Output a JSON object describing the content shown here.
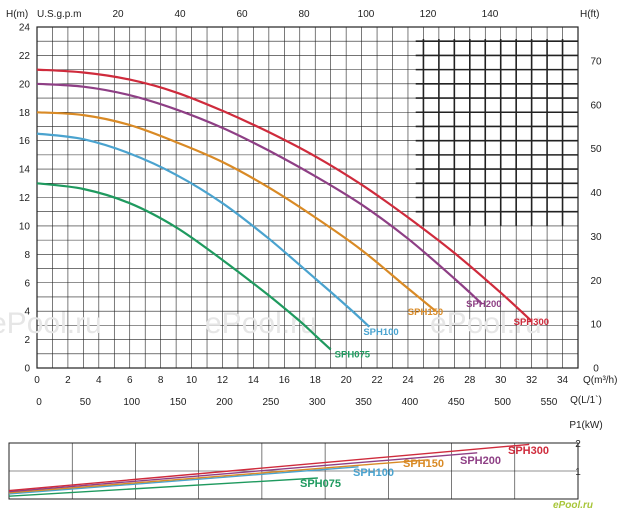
{
  "watermark": "ePool.ru",
  "brand_mark": "ePool.ru",
  "colors": {
    "SPH075": "#1f9a5f",
    "SPH100": "#4aa3cf",
    "SPH150": "#d98a25",
    "SPH200": "#8e3f85",
    "SPH300": "#cf2b3c",
    "grid": "#222222"
  },
  "chart_data": [
    {
      "type": "line",
      "title": "",
      "ylabel": "H(m)",
      "ylabel_right": "H(ft)",
      "xlabel_top": "U.S.g.p.m",
      "xlabel": "Q(m³/h)",
      "xlabel2": "Q(L/1`)",
      "xlim": [
        0,
        35
      ],
      "ylim": [
        0,
        24
      ],
      "grid": true,
      "x_ticks": [
        0,
        2,
        4,
        6,
        8,
        10,
        12,
        14,
        16,
        18,
        20,
        22,
        24,
        26,
        28,
        30,
        32,
        34
      ],
      "y_ticks": [
        0,
        2,
        4,
        6,
        8,
        10,
        12,
        14,
        16,
        18,
        20,
        22,
        24
      ],
      "top_ticks": [
        20,
        40,
        60,
        80,
        100,
        120,
        140
      ],
      "right_ticks": [
        0,
        10,
        20,
        30,
        40,
        50,
        60,
        70
      ],
      "lpm_ticks": [
        0,
        50,
        100,
        150,
        200,
        250,
        300,
        350,
        400,
        450,
        500,
        550
      ],
      "series": [
        {
          "name": "SPH075",
          "x": [
            0,
            3,
            6,
            9,
            12,
            15,
            17,
            18,
            19
          ],
          "y": [
            13,
            12.6,
            11.6,
            9.9,
            7.6,
            5.1,
            3.3,
            2.3,
            1.3
          ]
        },
        {
          "name": "SPH100",
          "x": [
            0,
            3,
            6,
            9,
            12,
            15,
            18,
            20,
            21.5
          ],
          "y": [
            16.5,
            16.1,
            15.1,
            13.6,
            11.6,
            9.1,
            6.3,
            4.4,
            2.9
          ]
        },
        {
          "name": "SPH150",
          "x": [
            0,
            3,
            6,
            9,
            12,
            15,
            18,
            21,
            24,
            25.8
          ],
          "y": [
            18,
            17.8,
            17.1,
            15.9,
            14.5,
            12.7,
            10.6,
            8.3,
            5.6,
            4.0
          ]
        },
        {
          "name": "SPH200",
          "x": [
            0,
            3,
            6,
            9,
            12,
            15,
            18,
            21,
            24,
            27,
            28.8
          ],
          "y": [
            20,
            19.8,
            19.2,
            18.2,
            16.9,
            15.3,
            13.5,
            11.5,
            9.1,
            6.3,
            4.5
          ]
        },
        {
          "name": "SPH300",
          "x": [
            0,
            3,
            6,
            9,
            12,
            15,
            18,
            21,
            24,
            27,
            30,
            32
          ],
          "y": [
            21,
            20.8,
            20.3,
            19.4,
            18.1,
            16.6,
            14.9,
            12.9,
            10.6,
            8.1,
            5.3,
            3.3
          ]
        }
      ]
    },
    {
      "type": "line",
      "ylabel": "P1(kW)",
      "xlim": [
        0,
        35
      ],
      "ylim": [
        0,
        2
      ],
      "grid": true,
      "y_ticks": [
        1,
        2
      ],
      "series": [
        {
          "name": "SPH075",
          "x": [
            0,
            19
          ],
          "y": [
            0.1,
            0.75
          ]
        },
        {
          "name": "SPH100",
          "x": [
            0,
            21.5
          ],
          "y": [
            0.18,
            1.15
          ]
        },
        {
          "name": "SPH150",
          "x": [
            0,
            25.8
          ],
          "y": [
            0.22,
            1.4
          ]
        },
        {
          "name": "SPH200",
          "x": [
            0,
            28.8
          ],
          "y": [
            0.26,
            1.65
          ]
        },
        {
          "name": "SPH300",
          "x": [
            0,
            32
          ],
          "y": [
            0.3,
            1.95
          ]
        }
      ]
    }
  ]
}
